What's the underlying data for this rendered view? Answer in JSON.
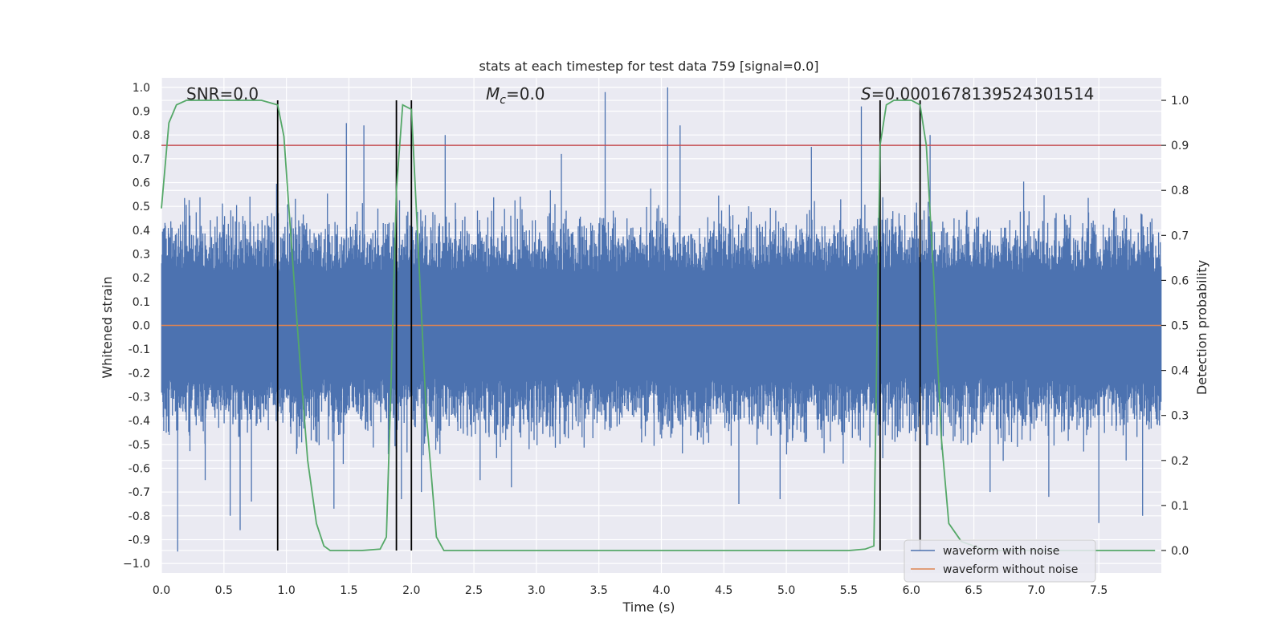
{
  "chart_data": {
    "type": "line",
    "title": "stats at each timestep for test data 759 [signal=0.0]",
    "xlabel": "Time (s)",
    "ylabel": "Whitened strain",
    "ylabel_right": "Detection probability",
    "xlim": [
      0.0,
      8.0
    ],
    "ylim": [
      -1.04,
      1.04
    ],
    "ylim_right": [
      -0.05,
      1.05
    ],
    "xticks": [
      "0.0",
      "0.5",
      "1.0",
      "1.5",
      "2.0",
      "2.5",
      "3.0",
      "3.5",
      "4.0",
      "4.5",
      "5.0",
      "5.5",
      "6.0",
      "6.5",
      "7.0",
      "7.5"
    ],
    "xtick_values": [
      0.0,
      0.5,
      1.0,
      1.5,
      2.0,
      2.5,
      3.0,
      3.5,
      4.0,
      4.5,
      5.0,
      5.5,
      6.0,
      6.5,
      7.0,
      7.5
    ],
    "yticks": [
      "1.0",
      "0.9",
      "0.8",
      "0.7",
      "0.6",
      "0.5",
      "0.4",
      "0.3",
      "0.2",
      "0.1",
      "0.0",
      "-0.1",
      "-0.2",
      "-0.3",
      "-0.4",
      "-0.5",
      "-0.6",
      "-0.7",
      "-0.8",
      "-0.9",
      "−1.0"
    ],
    "ytick_values": [
      1.0,
      0.9,
      0.8,
      0.7,
      0.6,
      0.5,
      0.4,
      0.3,
      0.2,
      0.1,
      0.0,
      -0.1,
      -0.2,
      -0.3,
      -0.4,
      -0.5,
      -0.6,
      -0.7,
      -0.8,
      -0.9,
      -1.0
    ],
    "yticks_right": [
      "1.0",
      "0.9",
      "0.8",
      "0.7",
      "0.6",
      "0.5",
      "0.4",
      "0.3",
      "0.2",
      "0.1",
      "0.0"
    ],
    "ytick_right_values": [
      1.0,
      0.9,
      0.8,
      0.7,
      0.6,
      0.5,
      0.4,
      0.3,
      0.2,
      0.1,
      0.0
    ],
    "annotations": {
      "snr": "SNR=0.0",
      "mc_symbol": "M",
      "mc_sub": "c",
      "mc_value": "=0.0",
      "s_symbol": "S",
      "s_value": "=0.0001678139524301514"
    },
    "legend": {
      "position": "lower-right",
      "entries": [
        "waveform with noise",
        "waveform without noise"
      ]
    },
    "colors": {
      "noise": "#4c72b0",
      "clean": "#dd8452",
      "probability": "#55a868",
      "threshold": "#c44e52",
      "markers": "#000000",
      "plot_bg": "#eaeaf2",
      "grid": "#ffffff"
    },
    "threshold": 0.9,
    "noise_envelope": {
      "typical_abs": 0.4,
      "max": 1.0,
      "min": -0.95
    },
    "vertical_markers": [
      0.93,
      1.88,
      2.0,
      5.75,
      6.07
    ],
    "noise_spikes": [
      {
        "t": 0.13,
        "v": -0.95
      },
      {
        "t": 0.55,
        "v": -0.8
      },
      {
        "t": 0.63,
        "v": -0.86
      },
      {
        "t": 0.72,
        "v": -0.74
      },
      {
        "t": 1.48,
        "v": 0.85
      },
      {
        "t": 1.62,
        "v": 0.84
      },
      {
        "t": 1.38,
        "v": -0.77
      },
      {
        "t": 1.92,
        "v": -0.73
      },
      {
        "t": 2.08,
        "v": -0.7
      },
      {
        "t": 2.27,
        "v": 0.8
      },
      {
        "t": 2.8,
        "v": -0.68
      },
      {
        "t": 3.55,
        "v": 0.98
      },
      {
        "t": 4.05,
        "v": 1.0
      },
      {
        "t": 4.15,
        "v": 0.84
      },
      {
        "t": 4.62,
        "v": -0.75
      },
      {
        "t": 4.95,
        "v": -0.73
      },
      {
        "t": 5.6,
        "v": 0.92
      },
      {
        "t": 6.15,
        "v": 0.8
      },
      {
        "t": 6.63,
        "v": -0.7
      },
      {
        "t": 7.1,
        "v": -0.72
      },
      {
        "t": 7.5,
        "v": -0.83
      },
      {
        "t": 7.85,
        "v": -0.8
      },
      {
        "t": 5.2,
        "v": 0.75
      },
      {
        "t": 3.2,
        "v": 0.72
      },
      {
        "t": 2.55,
        "v": -0.65
      },
      {
        "t": 0.35,
        "v": -0.65
      }
    ],
    "probability_series": {
      "x": [
        0.0,
        0.06,
        0.12,
        0.2,
        0.3,
        0.5,
        0.8,
        0.93,
        0.98,
        1.03,
        1.1,
        1.17,
        1.24,
        1.3,
        1.35,
        1.45,
        1.6,
        1.75,
        1.8,
        1.84,
        1.88,
        1.93,
        2.0,
        2.05,
        2.12,
        2.2,
        2.26,
        2.5,
        3.0,
        3.5,
        4.0,
        4.5,
        5.0,
        5.5,
        5.63,
        5.7,
        5.75,
        5.8,
        5.86,
        6.0,
        6.07,
        6.12,
        6.18,
        6.24,
        6.3,
        6.4,
        6.6,
        7.0,
        7.5,
        7.95
      ],
      "y": [
        0.76,
        0.95,
        0.99,
        1.0,
        1.0,
        1.0,
        1.0,
        0.99,
        0.92,
        0.72,
        0.45,
        0.2,
        0.06,
        0.01,
        0.0,
        0.0,
        0.0,
        0.003,
        0.03,
        0.4,
        0.8,
        0.99,
        0.98,
        0.7,
        0.3,
        0.03,
        0.0,
        0.0,
        0.0,
        0.0,
        0.0,
        0.0,
        0.0,
        0.0,
        0.003,
        0.01,
        0.9,
        0.99,
        1.0,
        1.0,
        0.99,
        0.9,
        0.6,
        0.25,
        0.06,
        0.02,
        0.0,
        0.0,
        0.0,
        0.0
      ]
    }
  }
}
